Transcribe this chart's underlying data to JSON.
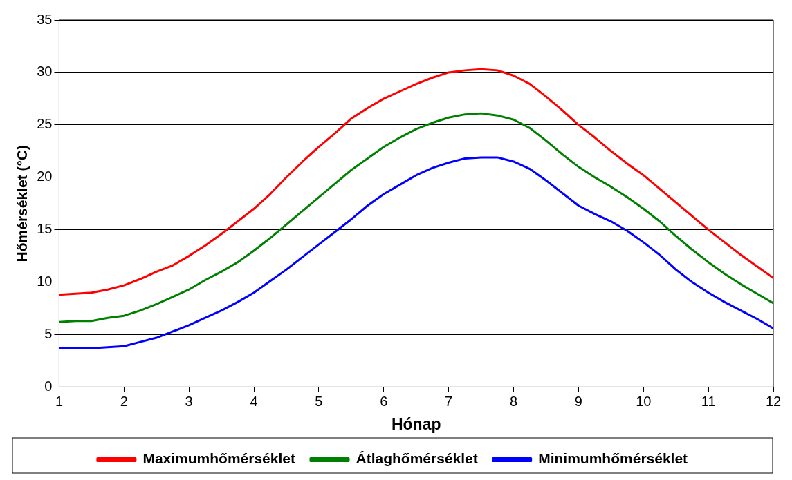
{
  "chart_data": {
    "type": "line",
    "xlabel": "Hónap",
    "ylabel": "Hőmérséklet (°C)",
    "x": [
      1,
      1.25,
      1.5,
      1.75,
      2,
      2.25,
      2.5,
      2.75,
      3,
      3.25,
      3.5,
      3.75,
      4,
      4.25,
      4.5,
      4.75,
      5,
      5.25,
      5.5,
      5.75,
      6,
      6.25,
      6.5,
      6.75,
      7,
      7.25,
      7.5,
      7.75,
      8,
      8.25,
      8.5,
      8.75,
      9,
      9.25,
      9.5,
      9.75,
      10,
      10.25,
      10.5,
      10.75,
      11,
      11.25,
      11.5,
      11.75,
      12
    ],
    "series": [
      {
        "name": "Maximumhőmérséklet",
        "color": "#ff0000",
        "values": [
          8.8,
          8.9,
          9.0,
          9.3,
          9.7,
          10.3,
          11.0,
          11.6,
          12.5,
          13.5,
          14.6,
          15.8,
          17.0,
          18.4,
          20.0,
          21.5,
          22.9,
          24.2,
          25.6,
          26.6,
          27.5,
          28.2,
          28.9,
          29.5,
          30.0,
          30.2,
          30.3,
          30.2,
          29.7,
          28.9,
          27.7,
          26.4,
          25.0,
          23.8,
          22.5,
          21.3,
          20.2,
          18.9,
          17.6,
          16.3,
          15.0,
          13.8,
          12.6,
          11.5,
          10.4
        ]
      },
      {
        "name": "Átlaghőmérséklet",
        "color": "#008000",
        "values": [
          6.2,
          6.3,
          6.3,
          6.6,
          6.8,
          7.3,
          7.9,
          8.6,
          9.3,
          10.2,
          11.0,
          11.9,
          13.0,
          14.2,
          15.5,
          16.8,
          18.1,
          19.4,
          20.7,
          21.8,
          22.9,
          23.8,
          24.6,
          25.2,
          25.7,
          26.0,
          26.1,
          25.9,
          25.5,
          24.7,
          23.5,
          22.2,
          21.0,
          20.0,
          19.1,
          18.1,
          17.0,
          15.8,
          14.4,
          13.1,
          11.9,
          10.8,
          9.8,
          8.9,
          8.0
        ]
      },
      {
        "name": "Minimumhőmérséklet",
        "color": "#0000ff",
        "values": [
          3.7,
          3.7,
          3.7,
          3.8,
          3.9,
          4.3,
          4.7,
          5.3,
          5.9,
          6.6,
          7.3,
          8.1,
          9.0,
          10.1,
          11.2,
          12.4,
          13.6,
          14.8,
          16.0,
          17.3,
          18.4,
          19.3,
          20.2,
          20.9,
          21.4,
          21.8,
          21.9,
          21.9,
          21.5,
          20.8,
          19.7,
          18.5,
          17.3,
          16.5,
          15.8,
          14.9,
          13.8,
          12.6,
          11.2,
          10.0,
          9.0,
          8.1,
          7.3,
          6.5,
          5.6
        ]
      }
    ],
    "xlim": [
      1,
      12
    ],
    "xticks": [
      1,
      2,
      3,
      4,
      5,
      6,
      7,
      8,
      9,
      10,
      11,
      12
    ],
    "ylim": [
      0,
      35
    ],
    "yticks": [
      0,
      5,
      10,
      15,
      20,
      25,
      30,
      35
    ],
    "grid": "y",
    "legend": "bottom",
    "marker": "none",
    "line_style": "solid"
  }
}
